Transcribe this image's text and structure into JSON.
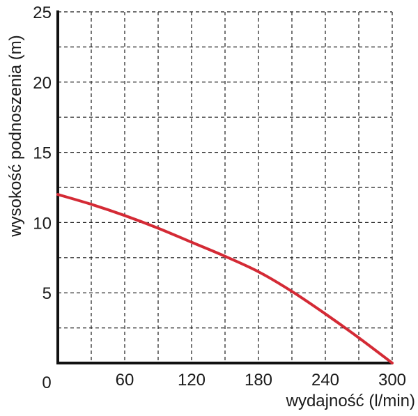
{
  "chart_data": {
    "type": "line",
    "xlabel": "wydajność (l/min)",
    "ylabel": "wysokość podnoszenia (m)",
    "xlim": [
      0,
      300
    ],
    "ylim": [
      0,
      25
    ],
    "x_ticks": [
      0,
      60,
      120,
      180,
      240,
      300
    ],
    "x_tick_labels": [
      "0",
      "60",
      "120",
      "180",
      "240",
      "300"
    ],
    "y_ticks": [
      5,
      10,
      15,
      20,
      25
    ],
    "y_tick_labels": [
      "5",
      "10",
      "15",
      "20",
      "25"
    ],
    "x_grid_step": 30,
    "y_grid_step": 2.5,
    "grid": true,
    "series": [
      {
        "color": "#d42a35",
        "x": [
          0,
          30,
          60,
          90,
          120,
          150,
          180,
          210,
          240,
          270,
          300
        ],
        "y": [
          12.0,
          11.3,
          10.5,
          9.6,
          8.6,
          7.6,
          6.5,
          5.1,
          3.5,
          1.8,
          0.0
        ]
      }
    ]
  }
}
